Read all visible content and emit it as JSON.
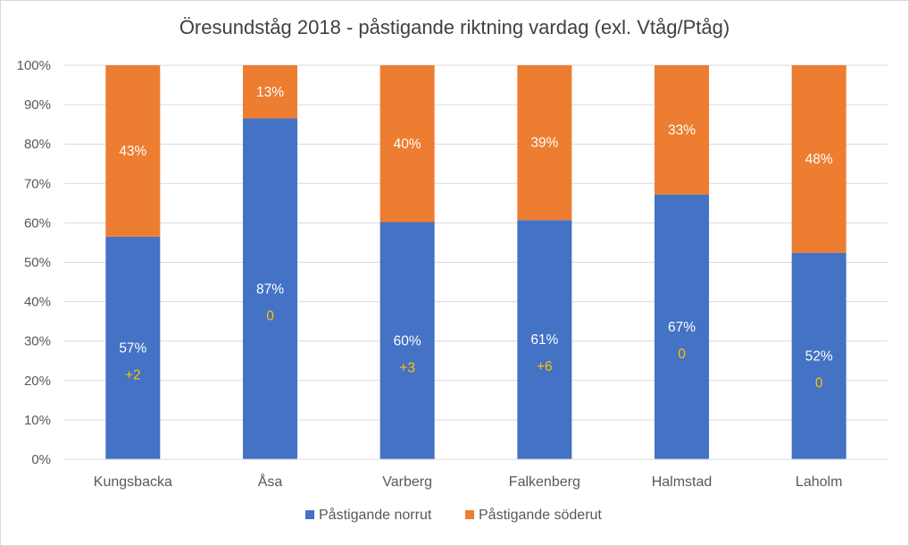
{
  "chart_data": {
    "type": "bar",
    "stacked": "100%",
    "title": "Öresundståg 2018 - påstigande riktning vardag (exl. Vtåg/Ptåg)",
    "xlabel": "",
    "ylabel": "",
    "ylim": [
      0,
      100
    ],
    "y_ticks": [
      "0%",
      "10%",
      "20%",
      "30%",
      "40%",
      "50%",
      "60%",
      "70%",
      "80%",
      "90%",
      "100%"
    ],
    "grid": true,
    "legend_position": "bottom",
    "categories": [
      "Kungsbacka",
      "Åsa",
      "Varberg",
      "Falkenberg",
      "Halmstad",
      "Laholm"
    ],
    "series": [
      {
        "name": "Påstigande norrut",
        "color": "#4472c4",
        "values": [
          56.5,
          86.5,
          60.2,
          60.7,
          67.2,
          52.4
        ],
        "labels": [
          "57%",
          "87%",
          "60%",
          "61%",
          "67%",
          "52%"
        ]
      },
      {
        "name": "Påstigande söderut",
        "color": "#ed7d31",
        "values": [
          43.5,
          13.5,
          39.8,
          39.3,
          32.8,
          47.6
        ],
        "labels": [
          "43%",
          "13%",
          "40%",
          "39%",
          "33%",
          "48%"
        ]
      }
    ],
    "annotations": [
      "+2",
      "0",
      "+3",
      "+6",
      "0",
      "0"
    ],
    "annotation_color": "#ffc000"
  }
}
